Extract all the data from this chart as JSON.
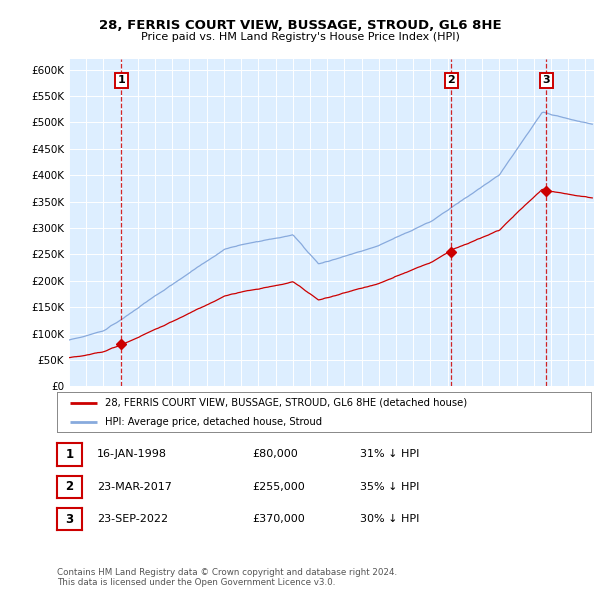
{
  "title": "28, FERRIS COURT VIEW, BUSSAGE, STROUD, GL6 8HE",
  "subtitle": "Price paid vs. HM Land Registry's House Price Index (HPI)",
  "property_label": "28, FERRIS COURT VIEW, BUSSAGE, STROUD, GL6 8HE (detached house)",
  "hpi_label": "HPI: Average price, detached house, Stroud",
  "property_color": "#cc0000",
  "hpi_color": "#88aadd",
  "background_color": "#ddeeff",
  "sale_year_floats": [
    1998.04,
    2017.22,
    2022.72
  ],
  "sale_prices": [
    80000,
    255000,
    370000
  ],
  "sale_labels": [
    "1",
    "2",
    "3"
  ],
  "sale_notes": [
    "16-JAN-1998",
    "23-MAR-2017",
    "23-SEP-2022"
  ],
  "sale_amounts": [
    "£80,000",
    "£255,000",
    "£370,000"
  ],
  "sale_hpi_notes": [
    "31% ↓ HPI",
    "35% ↓ HPI",
    "30% ↓ HPI"
  ],
  "ylim": [
    0,
    620000
  ],
  "yticks": [
    0,
    50000,
    100000,
    150000,
    200000,
    250000,
    300000,
    350000,
    400000,
    450000,
    500000,
    550000,
    600000
  ],
  "xlim": [
    1995,
    2025.5
  ],
  "footnote": "Contains HM Land Registry data © Crown copyright and database right 2024.\nThis data is licensed under the Open Government Licence v3.0."
}
